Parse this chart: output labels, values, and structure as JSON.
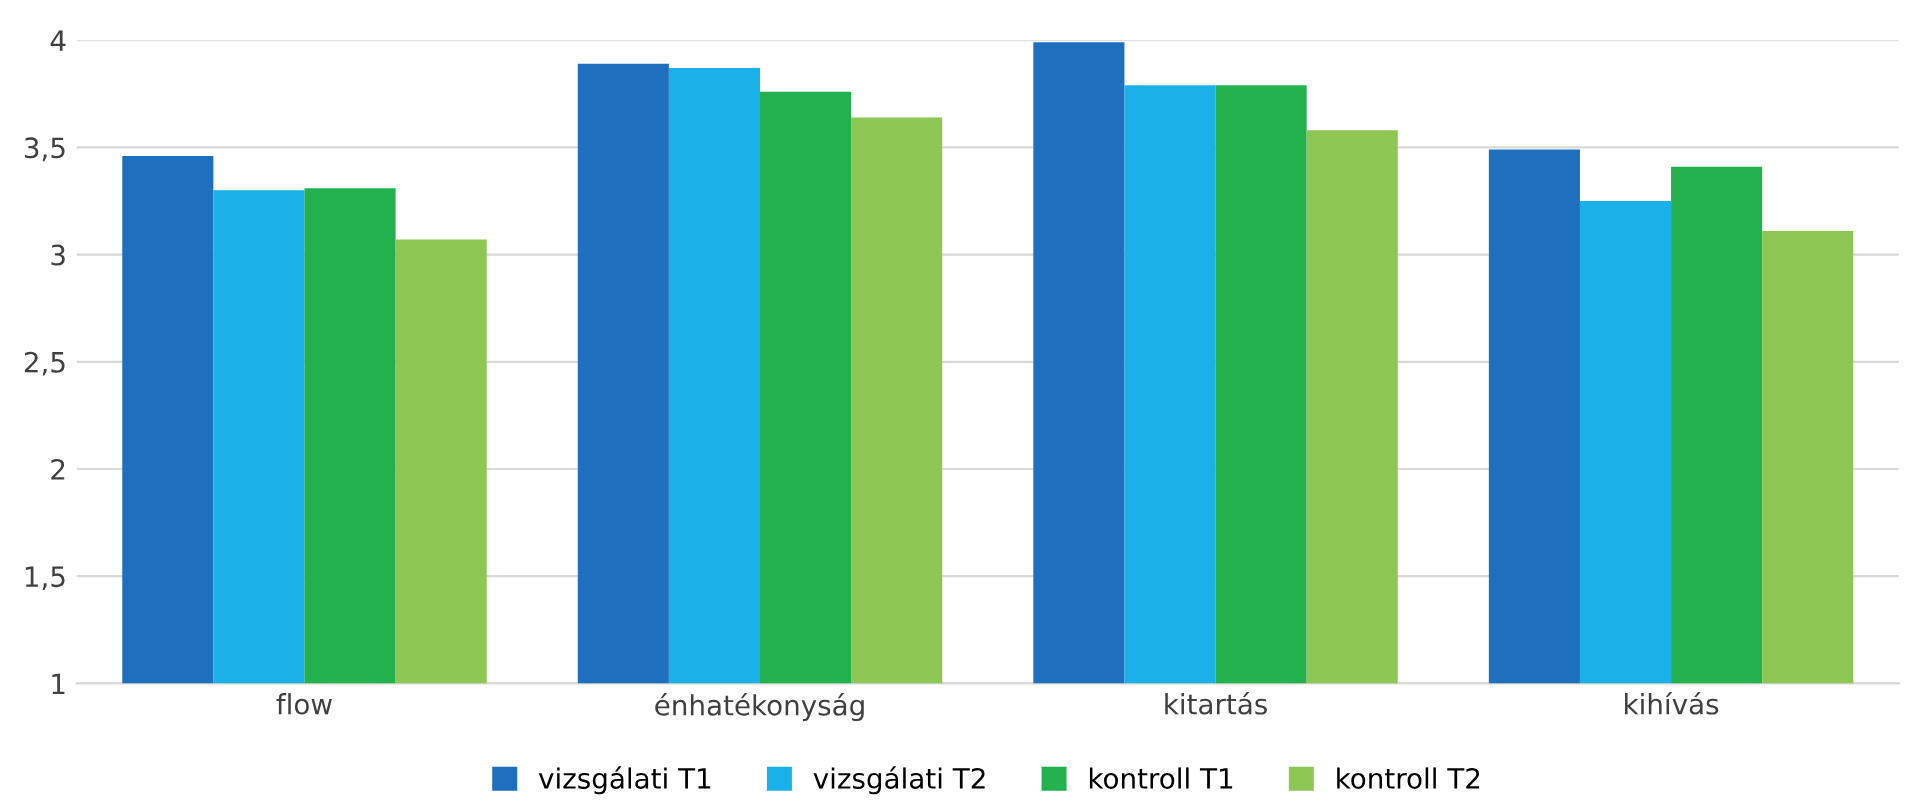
{
  "chart_data": {
    "type": "bar",
    "categories": [
      "flow",
      "énhatékonyság",
      "kitartás",
      "kihívás"
    ],
    "series": [
      {
        "name": "vizsgálati T1",
        "color": "#1f6fbf",
        "values": [
          3.46,
          3.89,
          3.99,
          3.49
        ]
      },
      {
        "name": "vizsgálati T2",
        "color": "#1ab0e8",
        "values": [
          3.3,
          3.87,
          3.79,
          3.25
        ]
      },
      {
        "name": "kontroll T1",
        "color": "#22b14c",
        "values": [
          3.31,
          3.76,
          3.79,
          3.41
        ]
      },
      {
        "name": "kontroll T2",
        "color": "#8dc653",
        "values": [
          3.07,
          3.64,
          3.58,
          3.11
        ]
      }
    ],
    "ylim": [
      1,
      4
    ],
    "yticks": [
      1,
      {
        "value": 1.5,
        "label": "1,5"
      },
      2,
      {
        "value": 2.5,
        "label": "2,5"
      },
      3,
      {
        "value": 3.5,
        "label": "3,5"
      },
      4
    ],
    "grid": "y",
    "legend": "bottom"
  }
}
